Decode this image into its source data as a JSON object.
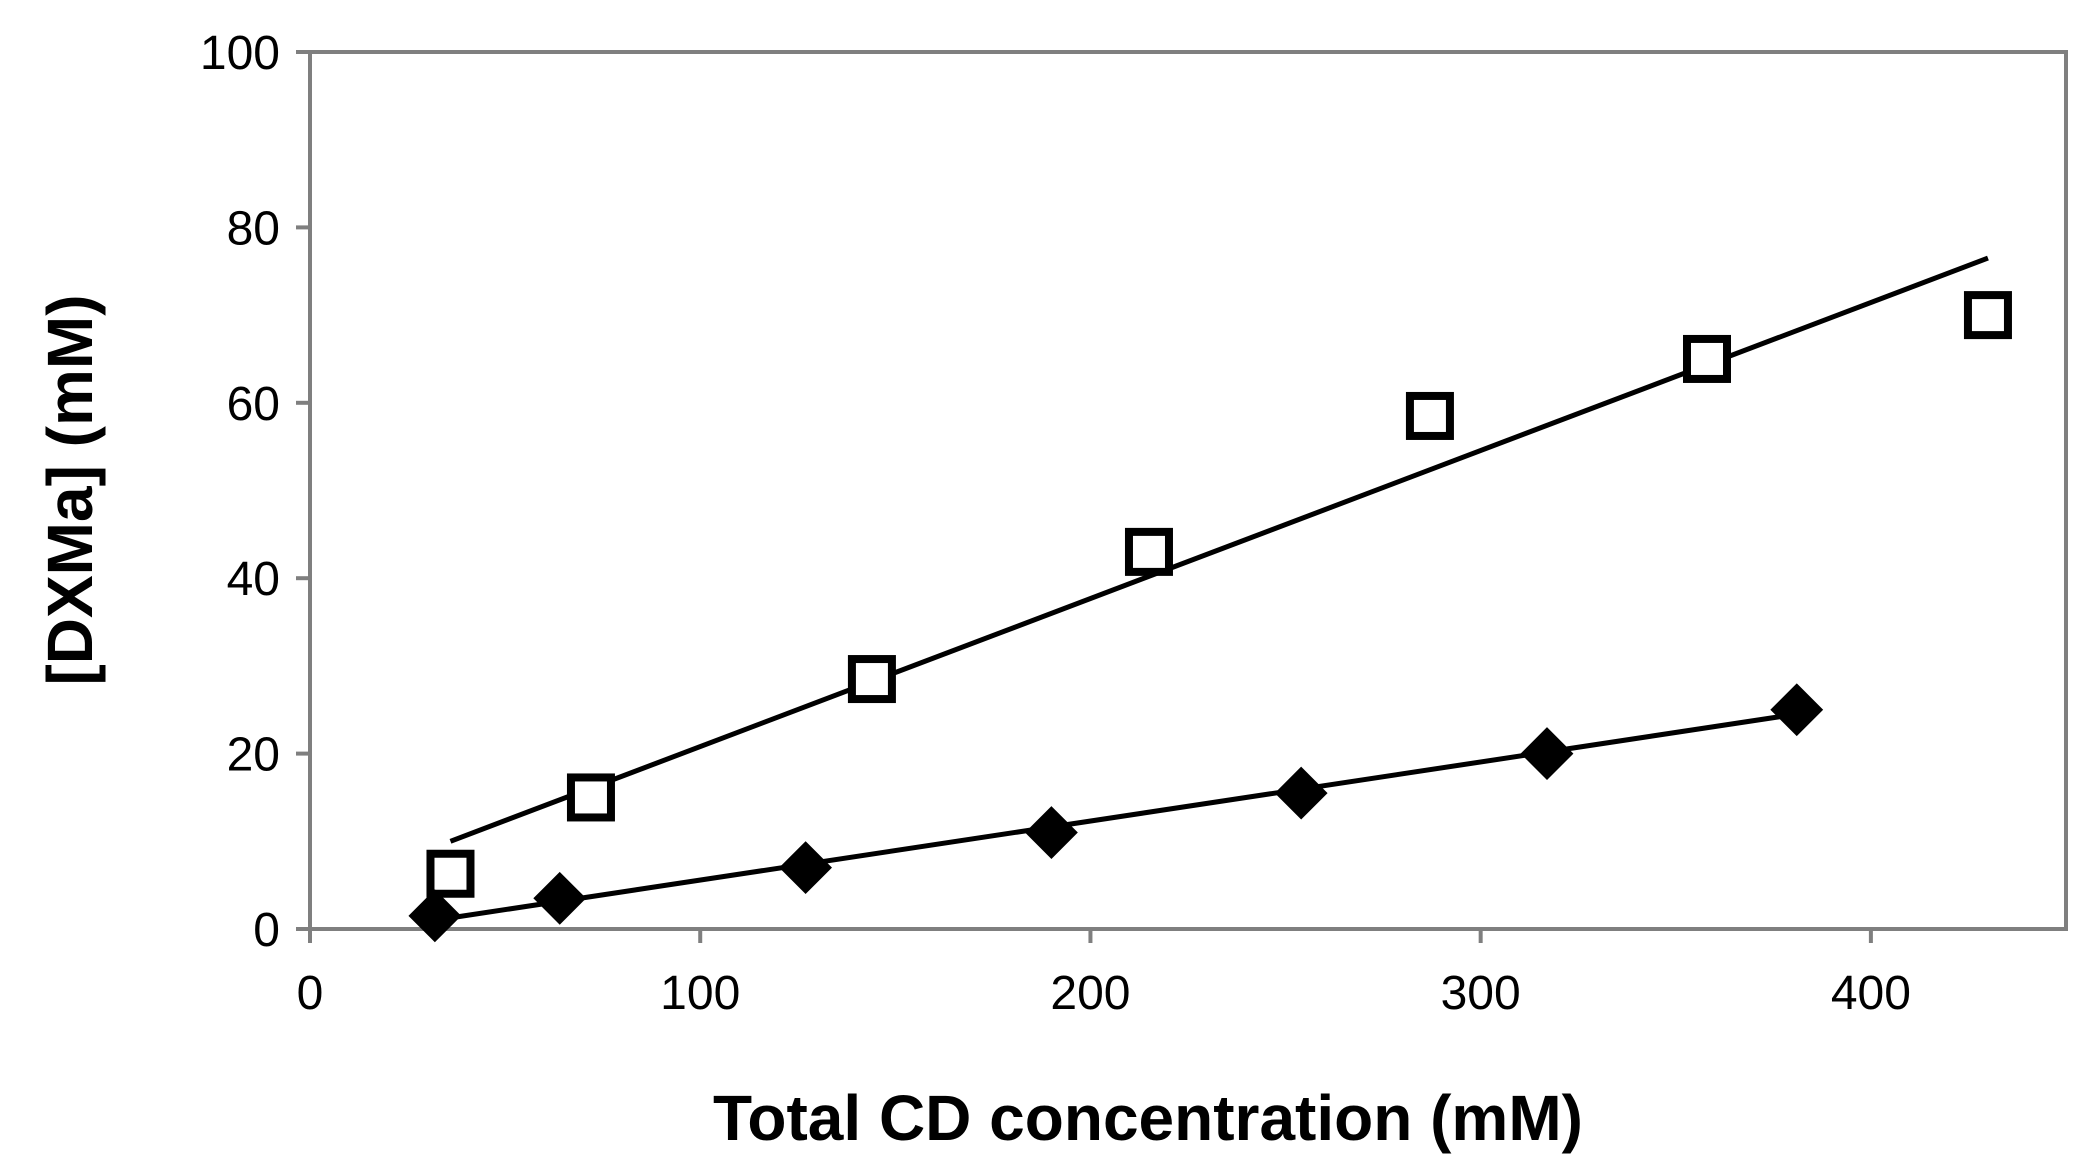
{
  "chart_data": {
    "type": "scatter",
    "title": "",
    "xlabel": "Total CD concentration (mM)",
    "ylabel": "[DXMa] (mM)",
    "xlim": [
      0,
      450
    ],
    "ylim": [
      0,
      100
    ],
    "xticks": [
      0,
      100,
      200,
      300,
      400
    ],
    "yticks": [
      0,
      20,
      40,
      60,
      80,
      100
    ],
    "xtick_labels": [
      "0",
      "100",
      "200",
      "300",
      "400"
    ],
    "ytick_labels": [
      "0",
      "20",
      "40",
      "60",
      "80",
      "100"
    ],
    "grid": false,
    "series": [
      {
        "name": "open-squares",
        "marker": "square-open",
        "color": "#000000",
        "x": [
          36,
          72,
          144,
          215,
          287,
          358,
          430
        ],
        "y": [
          6.3,
          15,
          28.5,
          43,
          58.5,
          65,
          70
        ],
        "trendline": {
          "x": [
            36,
            430
          ],
          "y": [
            10,
            76.5
          ]
        }
      },
      {
        "name": "filled-diamonds",
        "marker": "diamond-filled",
        "color": "#000000",
        "x": [
          32,
          64,
          127,
          190,
          254,
          317,
          381
        ],
        "y": [
          1.5,
          3.5,
          7,
          11,
          15.5,
          20,
          25
        ],
        "trendline": {
          "x": [
            32,
            381
          ],
          "y": [
            1,
            24.5
          ]
        }
      }
    ],
    "axis_color": "#7f7f7f"
  }
}
